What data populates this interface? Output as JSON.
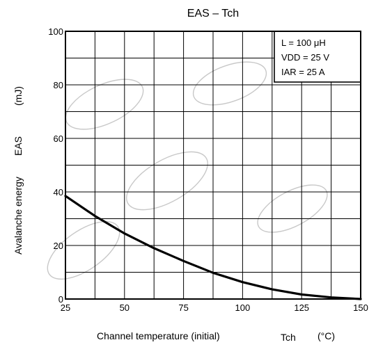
{
  "chart_data": {
    "type": "line",
    "title": "EAS – Tch",
    "xlabel": "Channel temperature (initial)",
    "xlabel_symbol": "Tch",
    "xlabel_unit": "(°C)",
    "ylabel": "Avalanche energy",
    "ylabel_symbol": "EAS",
    "ylabel_unit": "(mJ)",
    "xlim": [
      25,
      150
    ],
    "ylim": [
      0,
      100
    ],
    "x_ticks": [
      25,
      50,
      75,
      100,
      125,
      150
    ],
    "y_ticks": [
      0,
      20,
      40,
      60,
      80,
      100
    ],
    "x_minor_step": 12.5,
    "y_minor_step": 10,
    "grid": true,
    "annotation_lines": [
      "L = 100 μH",
      "VDD = 25 V",
      "IAR = 25 A"
    ],
    "annotation_placement": "top-right",
    "series": [
      {
        "x": [
          25,
          37.5,
          50,
          62.5,
          75,
          87.5,
          100,
          112.5,
          125,
          137.5,
          150
        ],
        "values": [
          38.5,
          31,
          24.5,
          19,
          14.2,
          9.8,
          6.3,
          3.6,
          1.7,
          0.6,
          0
        ]
      }
    ]
  }
}
